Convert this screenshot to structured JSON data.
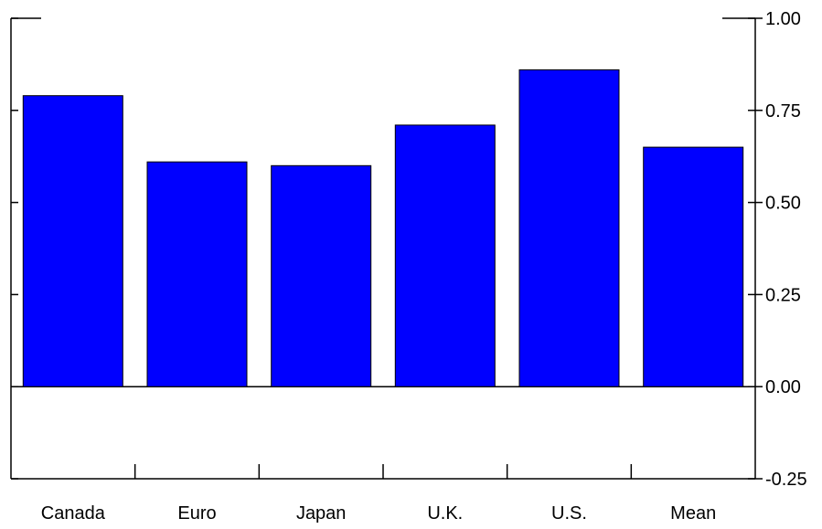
{
  "chart_data": {
    "type": "bar",
    "categories": [
      "Canada",
      "Euro",
      "Japan",
      "U.K.",
      "U.S.",
      "Mean"
    ],
    "values": [
      0.79,
      0.61,
      0.6,
      0.71,
      0.86,
      0.65
    ],
    "ylim": [
      -0.25,
      1.0
    ],
    "yticks": [
      "-0.25",
      "0.00",
      "0.25",
      "0.50",
      "0.75",
      "1.00"
    ],
    "ytick_values": [
      -0.25,
      0.0,
      0.25,
      0.5,
      0.75,
      1.0
    ],
    "y_axis_position": "right",
    "grid": false,
    "colors": {
      "bar": "#0000ff",
      "axis": "#000000"
    }
  }
}
